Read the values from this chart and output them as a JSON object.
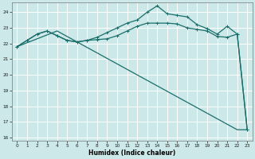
{
  "xlabel": "Humidex (Indice chaleur)",
  "bg_color": "#cce8e8",
  "grid_color": "#ffffff",
  "line_color": "#1a6e6a",
  "xlim": [
    -0.5,
    23.5
  ],
  "ylim": [
    15.8,
    24.6
  ],
  "xticks": [
    0,
    1,
    2,
    3,
    4,
    5,
    6,
    7,
    8,
    9,
    10,
    11,
    12,
    13,
    14,
    15,
    16,
    17,
    18,
    19,
    20,
    21,
    22,
    23
  ],
  "yticks": [
    16,
    17,
    18,
    19,
    20,
    21,
    22,
    23,
    24
  ],
  "line1_x": [
    0,
    1,
    2,
    3,
    4,
    5,
    6,
    7,
    8,
    9,
    10,
    11,
    12,
    13,
    14,
    15,
    16,
    17,
    18,
    19,
    20,
    21,
    22,
    23
  ],
  "line1_y": [
    21.8,
    22.2,
    22.6,
    22.8,
    22.5,
    22.2,
    22.1,
    22.2,
    22.25,
    22.3,
    22.5,
    22.8,
    23.1,
    23.3,
    23.3,
    23.3,
    23.25,
    23.0,
    22.9,
    22.8,
    22.45,
    22.4,
    22.6,
    16.5
  ],
  "line2_x": [
    0,
    1,
    2,
    3,
    4,
    5,
    6,
    7,
    8,
    9,
    10,
    11,
    12,
    13,
    14,
    15,
    16,
    17,
    18,
    19,
    20,
    21,
    22,
    23
  ],
  "line2_y": [
    21.8,
    22.2,
    22.6,
    22.8,
    22.5,
    22.2,
    22.1,
    22.2,
    22.4,
    22.7,
    23.0,
    23.3,
    23.5,
    24.0,
    24.4,
    23.9,
    23.8,
    23.7,
    23.2,
    22.95,
    22.6,
    23.1,
    22.6,
    16.5
  ],
  "line3_x": [
    0,
    4,
    22,
    23
  ],
  "line3_y": [
    21.8,
    22.8,
    16.5,
    16.5
  ]
}
